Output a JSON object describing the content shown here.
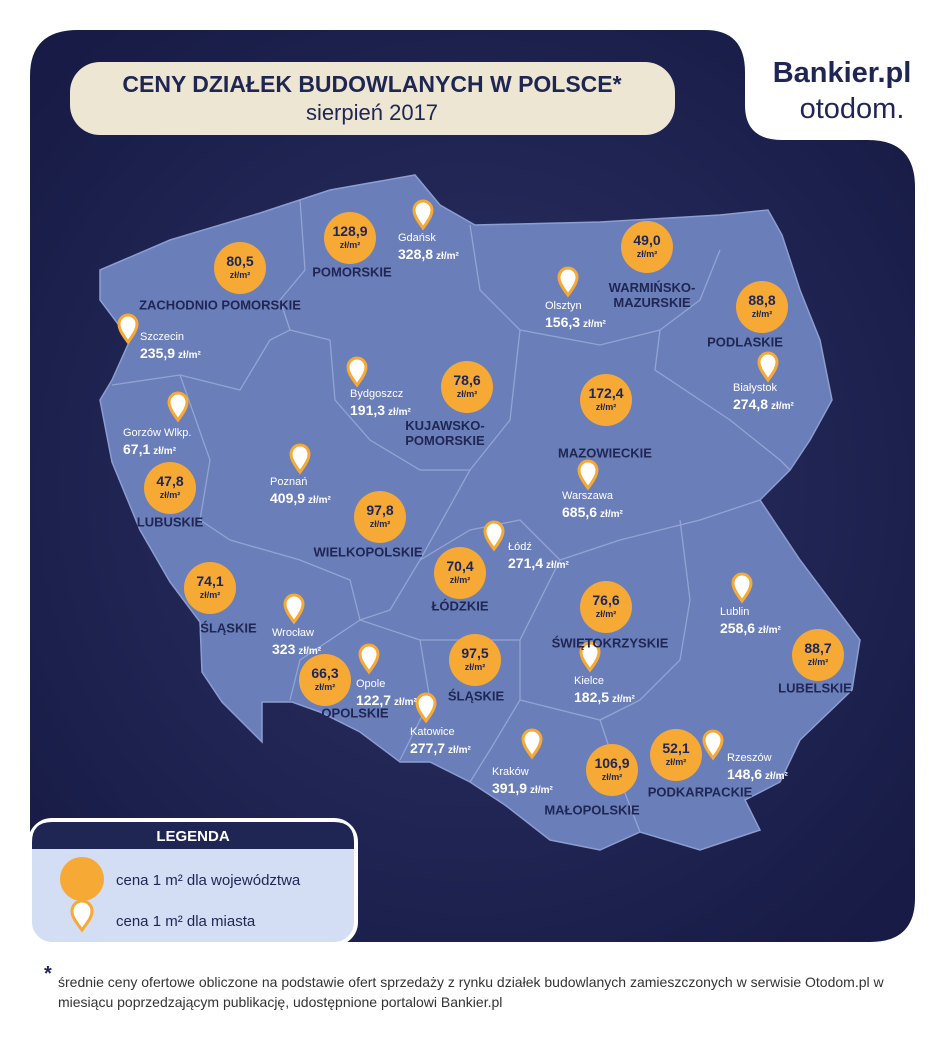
{
  "header": {
    "title": "CENY DZIAŁEK BUDOWLANYCH W POLSCE*",
    "subtitle": "sierpień 2017"
  },
  "logos": {
    "bankier": "Bankier.pl",
    "otodom": "otodom."
  },
  "unit": "zł/m²",
  "voivodeships": [
    {
      "name": "ZACHODNIO POMORSKIE",
      "price": "80,5"
    },
    {
      "name": "POMORSKIE",
      "price": "128,9"
    },
    {
      "name": "WARMIŃSKO-MAZURSKIE",
      "price": "49,0"
    },
    {
      "name": "PODLASKIE",
      "price": "88,8"
    },
    {
      "name": "KUJAWSKO-POMORSKIE",
      "price": "78,6"
    },
    {
      "name": "MAZOWIECKIE",
      "price": "172,4"
    },
    {
      "name": "LUBUSKIE",
      "price": "47,8"
    },
    {
      "name": "WIELKOPOLSKIE",
      "price": "97,8"
    },
    {
      "name": "ŁÓDZKIE",
      "price": "70,4"
    },
    {
      "name": "DOLNOŚLĄSKIE",
      "price": "74,1"
    },
    {
      "name": "ŚWIĘTOKRZYSKIE",
      "price": "76,6"
    },
    {
      "name": "LUBELSKIE",
      "price": "88,7"
    },
    {
      "name": "OPOLSKIE",
      "price": "66,3"
    },
    {
      "name": "ŚLĄSKIE",
      "price": "97,5"
    },
    {
      "name": "MAŁOPOLSKIE",
      "price": "106,9"
    },
    {
      "name": "PODKARPACKIE",
      "price": "52,1"
    }
  ],
  "cities": [
    {
      "name": "Szczecin",
      "price": "235,9"
    },
    {
      "name": "Gdańsk",
      "price": "328,8"
    },
    {
      "name": "Olsztyn",
      "price": "156,3"
    },
    {
      "name": "Białystok",
      "price": "274,8"
    },
    {
      "name": "Bydgoszcz",
      "price": "191,3"
    },
    {
      "name": "Gorzów Wlkp.",
      "price": "67,1"
    },
    {
      "name": "Poznań",
      "price": "409,9"
    },
    {
      "name": "Warszawa",
      "price": "685,6"
    },
    {
      "name": "Łódź",
      "price": "271,4"
    },
    {
      "name": "Wrocław",
      "price": "323"
    },
    {
      "name": "Lublin",
      "price": "258,6"
    },
    {
      "name": "Kielce",
      "price": "182,5"
    },
    {
      "name": "Opole",
      "price": "122,7"
    },
    {
      "name": "Katowice",
      "price": "277,7"
    },
    {
      "name": "Kraków",
      "price": "391,9"
    },
    {
      "name": "Rzeszów",
      "price": "148,6"
    }
  ],
  "legend": {
    "title": "LEGENDA",
    "items": [
      "cena 1 m² dla województwa",
      "cena 1 m² dla miasta"
    ]
  },
  "footnote": {
    "mark": "*",
    "text": "średnie ceny ofertowe obliczone na podstawie ofert sprzedaży z rynku działek budowlanych zamieszczonych w serwisie Otodom.pl w miesiącu poprzedzającym publikację, udostępnione portalowi Bankier.pl"
  }
}
